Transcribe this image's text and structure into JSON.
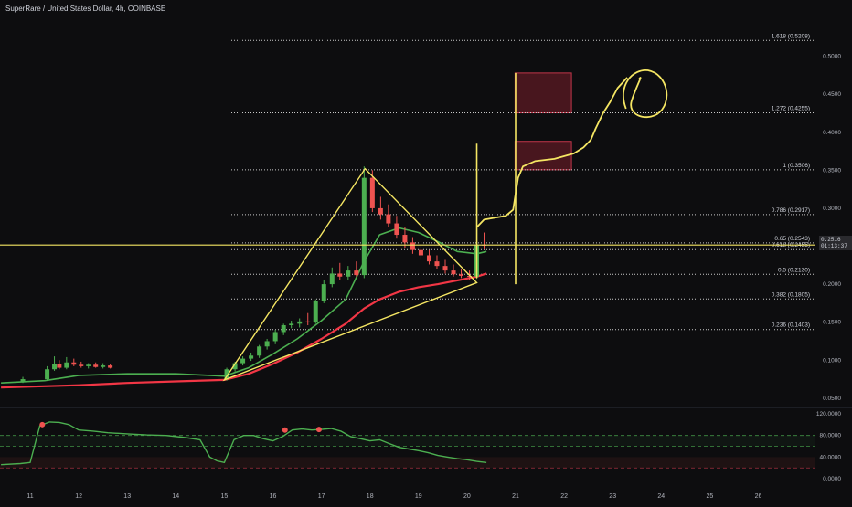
{
  "header": {
    "symbol_title": "SuperRare / United States Dollar, 4h, COINBASE"
  },
  "price_tag": {
    "price": "0.2516",
    "countdown": "01:13:37"
  },
  "colors": {
    "background": "#0d0d0f",
    "up_candle": "#26a69a",
    "up_candle_bright": "#4caf50",
    "down_candle": "#ef5350",
    "ema_fast": "#4caf50",
    "ema_slow": "#f23645",
    "annotation": "#f5e663",
    "fib_line": "#c9c9c9",
    "zone_fill": "#7a1f2b",
    "zone_border": "#c2364a",
    "rsi_line": "#4caf50",
    "rsi_dot": "#ef5350"
  },
  "chart_data": [
    {
      "type": "candlestick",
      "title": "SuperRare / United States Dollar, 4h, COINBASE",
      "x_ticks": [
        "11",
        "12",
        "13",
        "14",
        "15",
        "16",
        "17",
        "18",
        "19",
        "20",
        "21",
        "22",
        "23",
        "24",
        "25",
        "26"
      ],
      "y_ticks": [
        "0.0500",
        "0.1000",
        "0.1500",
        "0.2000",
        "0.2500",
        "0.3000",
        "0.3500",
        "0.4000",
        "0.4500",
        "0.5000"
      ],
      "ylim": [
        0.045,
        0.55
      ],
      "xlim": [
        10.4,
        26.5
      ],
      "candles": [
        {
          "t": 10.85,
          "o": 0.072,
          "h": 0.078,
          "l": 0.07,
          "c": 0.075
        },
        {
          "t": 11.35,
          "o": 0.075,
          "h": 0.092,
          "l": 0.074,
          "c": 0.088
        },
        {
          "t": 11.5,
          "o": 0.088,
          "h": 0.105,
          "l": 0.086,
          "c": 0.095
        },
        {
          "t": 11.6,
          "o": 0.095,
          "h": 0.1,
          "l": 0.088,
          "c": 0.09
        },
        {
          "t": 11.75,
          "o": 0.09,
          "h": 0.104,
          "l": 0.088,
          "c": 0.097
        },
        {
          "t": 11.9,
          "o": 0.097,
          "h": 0.102,
          "l": 0.092,
          "c": 0.094
        },
        {
          "t": 12.05,
          "o": 0.094,
          "h": 0.098,
          "l": 0.09,
          "c": 0.092
        },
        {
          "t": 12.2,
          "o": 0.092,
          "h": 0.096,
          "l": 0.089,
          "c": 0.094
        },
        {
          "t": 12.35,
          "o": 0.094,
          "h": 0.097,
          "l": 0.09,
          "c": 0.091
        },
        {
          "t": 12.5,
          "o": 0.091,
          "h": 0.096,
          "l": 0.089,
          "c": 0.093
        },
        {
          "t": 12.65,
          "o": 0.093,
          "h": 0.095,
          "l": 0.089,
          "c": 0.09
        },
        {
          "t": 15.05,
          "o": 0.075,
          "h": 0.09,
          "l": 0.073,
          "c": 0.088
        },
        {
          "t": 15.22,
          "o": 0.088,
          "h": 0.098,
          "l": 0.085,
          "c": 0.096
        },
        {
          "t": 15.38,
          "o": 0.096,
          "h": 0.105,
          "l": 0.093,
          "c": 0.102
        },
        {
          "t": 15.55,
          "o": 0.102,
          "h": 0.11,
          "l": 0.099,
          "c": 0.106
        },
        {
          "t": 15.72,
          "o": 0.106,
          "h": 0.12,
          "l": 0.103,
          "c": 0.118
        },
        {
          "t": 15.88,
          "o": 0.118,
          "h": 0.128,
          "l": 0.114,
          "c": 0.125
        },
        {
          "t": 16.05,
          "o": 0.125,
          "h": 0.14,
          "l": 0.121,
          "c": 0.137
        },
        {
          "t": 16.22,
          "o": 0.137,
          "h": 0.148,
          "l": 0.133,
          "c": 0.146
        },
        {
          "t": 16.38,
          "o": 0.146,
          "h": 0.152,
          "l": 0.142,
          "c": 0.148
        },
        {
          "t": 16.55,
          "o": 0.148,
          "h": 0.155,
          "l": 0.143,
          "c": 0.151
        },
        {
          "t": 16.72,
          "o": 0.151,
          "h": 0.162,
          "l": 0.146,
          "c": 0.15
        },
        {
          "t": 16.88,
          "o": 0.15,
          "h": 0.18,
          "l": 0.148,
          "c": 0.178
        },
        {
          "t": 17.05,
          "o": 0.178,
          "h": 0.205,
          "l": 0.175,
          "c": 0.2
        },
        {
          "t": 17.22,
          "o": 0.2,
          "h": 0.222,
          "l": 0.196,
          "c": 0.214
        },
        {
          "t": 17.38,
          "o": 0.214,
          "h": 0.228,
          "l": 0.206,
          "c": 0.21
        },
        {
          "t": 17.55,
          "o": 0.21,
          "h": 0.224,
          "l": 0.205,
          "c": 0.218
        },
        {
          "t": 17.72,
          "o": 0.218,
          "h": 0.23,
          "l": 0.21,
          "c": 0.212
        },
        {
          "t": 17.88,
          "o": 0.212,
          "h": 0.355,
          "l": 0.208,
          "c": 0.34
        },
        {
          "t": 18.05,
          "o": 0.34,
          "h": 0.35,
          "l": 0.295,
          "c": 0.3
        },
        {
          "t": 18.22,
          "o": 0.3,
          "h": 0.315,
          "l": 0.285,
          "c": 0.292
        },
        {
          "t": 18.38,
          "o": 0.292,
          "h": 0.305,
          "l": 0.275,
          "c": 0.28
        },
        {
          "t": 18.55,
          "o": 0.28,
          "h": 0.29,
          "l": 0.26,
          "c": 0.265
        },
        {
          "t": 18.72,
          "o": 0.265,
          "h": 0.275,
          "l": 0.248,
          "c": 0.255
        },
        {
          "t": 18.88,
          "o": 0.255,
          "h": 0.262,
          "l": 0.24,
          "c": 0.245
        },
        {
          "t": 19.05,
          "o": 0.245,
          "h": 0.252,
          "l": 0.232,
          "c": 0.238
        },
        {
          "t": 19.22,
          "o": 0.238,
          "h": 0.245,
          "l": 0.226,
          "c": 0.23
        },
        {
          "t": 19.38,
          "o": 0.23,
          "h": 0.238,
          "l": 0.22,
          "c": 0.224
        },
        {
          "t": 19.55,
          "o": 0.224,
          "h": 0.232,
          "l": 0.214,
          "c": 0.218
        },
        {
          "t": 19.72,
          "o": 0.218,
          "h": 0.226,
          "l": 0.21,
          "c": 0.213
        },
        {
          "t": 19.88,
          "o": 0.213,
          "h": 0.22,
          "l": 0.208,
          "c": 0.211
        },
        {
          "t": 20.05,
          "o": 0.211,
          "h": 0.218,
          "l": 0.206,
          "c": 0.21
        },
        {
          "t": 20.2,
          "o": 0.21,
          "h": 0.262,
          "l": 0.207,
          "c": 0.252
        },
        {
          "t": 20.35,
          "o": 0.252,
          "h": 0.268,
          "l": 0.246,
          "c": 0.2516
        }
      ],
      "ema_fast": {
        "x": [
          10.4,
          11.3,
          12.0,
          13.0,
          14.0,
          15.0,
          15.5,
          16.0,
          16.5,
          17.0,
          17.5,
          17.88,
          18.2,
          18.6,
          19.0,
          19.4,
          19.8,
          20.2,
          20.4
        ],
        "y": [
          0.07,
          0.073,
          0.08,
          0.082,
          0.082,
          0.079,
          0.09,
          0.108,
          0.128,
          0.152,
          0.18,
          0.23,
          0.265,
          0.274,
          0.268,
          0.256,
          0.243,
          0.24,
          0.243
        ]
      },
      "ema_slow": {
        "x": [
          10.4,
          12.0,
          13.0,
          14.0,
          15.0,
          15.5,
          16.0,
          16.5,
          17.0,
          17.5,
          17.88,
          18.2,
          18.6,
          19.0,
          19.4,
          19.8,
          20.2,
          20.4
        ],
        "y": [
          0.064,
          0.067,
          0.07,
          0.072,
          0.074,
          0.082,
          0.095,
          0.11,
          0.128,
          0.148,
          0.168,
          0.18,
          0.19,
          0.196,
          0.2,
          0.205,
          0.21,
          0.214
        ]
      },
      "fib_levels": [
        {
          "label": "1.618 (0.5208)",
          "value": 0.5208
        },
        {
          "label": "1.272 (0.4255)",
          "value": 0.4255
        },
        {
          "label": "1 (0.3506)",
          "value": 0.3506
        },
        {
          "label": "0.786 (0.2917)",
          "value": 0.2917
        },
        {
          "label": "0.65 (0.2543)",
          "value": 0.2543
        },
        {
          "label": "0.618 (0.2455)",
          "value": 0.2455
        },
        {
          "label": "0.5 (0.2130)",
          "value": 0.213
        },
        {
          "label": "0.382 (0.1805)",
          "value": 0.1805
        },
        {
          "label": "0.236 (0.1403)",
          "value": 0.1403
        }
      ],
      "zones": [
        {
          "t_start": 20.8,
          "t_end": 22.0,
          "price_low": 0.4255,
          "price_high": 0.478
        },
        {
          "t_start": 20.8,
          "t_end": 22.0,
          "price_low": 0.3506,
          "price_high": 0.388
        }
      ],
      "horizontal_line": {
        "value": 0.2516
      },
      "triangle": {
        "points": [
          [
            15.0,
            0.074
          ],
          [
            17.9,
            0.352
          ],
          [
            20.2,
            0.202
          ]
        ],
        "lower_edge": [
          [
            15.0,
            0.074
          ],
          [
            20.2,
            0.202
          ]
        ]
      },
      "vertical_lines": [
        {
          "t": 20.2,
          "y_from": 0.385,
          "y_to": 0.208
        },
        {
          "t": 21.0,
          "y_from": 0.478,
          "y_to": 0.2
        }
      ],
      "projection": {
        "x": [
          20.2,
          20.35,
          20.8,
          20.95,
          21.05,
          21.15,
          21.4,
          21.8,
          22.2,
          22.4,
          22.55,
          22.65,
          22.8,
          22.95,
          23.1,
          23.3
        ],
        "y": [
          0.275,
          0.285,
          0.29,
          0.298,
          0.34,
          0.355,
          0.362,
          0.365,
          0.372,
          0.38,
          0.39,
          0.405,
          0.425,
          0.44,
          0.458,
          0.472
        ]
      },
      "circle_marker": {
        "t": 23.5,
        "value": 0.455
      }
    },
    {
      "type": "line",
      "title": "RSI",
      "y_ticks": [
        "120.0000",
        "80.0000",
        "40.0000",
        "0.0000"
      ],
      "ylim": [
        -10,
        125
      ],
      "bands": [
        80,
        60,
        20
      ],
      "series": [
        {
          "x": [
            10.4,
            10.8,
            11.0,
            11.2,
            11.4,
            11.6,
            11.8,
            12.0,
            12.3,
            12.6,
            13.0,
            13.4,
            13.8,
            14.2,
            14.5,
            14.7,
            14.85,
            15.0,
            15.2,
            15.4,
            15.6,
            15.8,
            16.0,
            16.2,
            16.4,
            16.6,
            16.8,
            17.0,
            17.2,
            17.4,
            17.6,
            17.8,
            18.0,
            18.2,
            18.4,
            18.6,
            18.8,
            19.0,
            19.2,
            19.4,
            19.6,
            19.8,
            20.0,
            20.2,
            20.4
          ],
          "y": [
            26,
            28,
            30,
            98,
            105,
            104,
            100,
            90,
            88,
            85,
            83,
            81,
            80,
            76,
            72,
            40,
            33,
            30,
            72,
            80,
            80,
            74,
            70,
            78,
            90,
            92,
            90,
            91,
            93,
            88,
            78,
            74,
            70,
            72,
            65,
            58,
            55,
            52,
            48,
            43,
            40,
            37,
            35,
            32,
            30
          ]
        }
      ],
      "overbought_points": [
        {
          "x": 11.25,
          "y": 100
        },
        {
          "x": 16.25,
          "y": 90
        },
        {
          "x": 16.95,
          "y": 91
        }
      ]
    }
  ]
}
